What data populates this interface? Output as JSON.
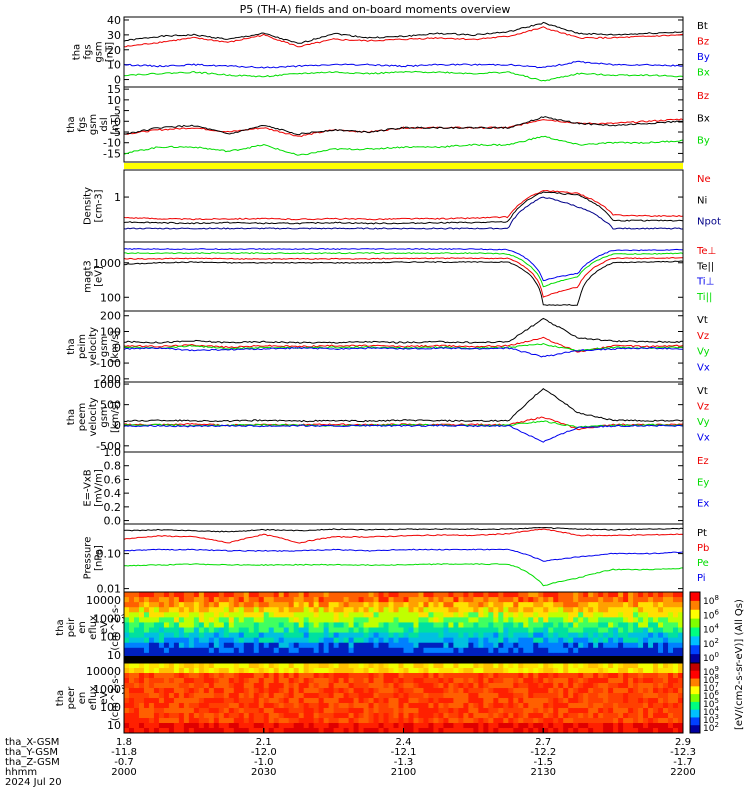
{
  "title": "P5 (TH-A) fields and on-board moments overview",
  "footer_date": "2024 Jul 20",
  "colorbar_label": "[eV/(cm2-s-sr-eV)] (All Qs)",
  "chart_data": [
    {
      "type": "line",
      "panel": "fgs_gsm",
      "ylabel": [
        "tha",
        "fgs",
        "gsm",
        "[nT]"
      ],
      "yticks": [
        "40",
        "30",
        "20",
        "10",
        "0"
      ],
      "ylim": [
        -5,
        42
      ],
      "series": [
        {
          "name": "Bt",
          "color": "#000000",
          "values": [
            26,
            29,
            30,
            27,
            31,
            24,
            31,
            28,
            29,
            31,
            30,
            32,
            38,
            31,
            30,
            31,
            32
          ]
        },
        {
          "name": "Bz",
          "color": "#ee0000",
          "values": [
            22,
            25,
            28,
            25,
            30,
            22,
            27,
            26,
            27,
            28,
            27,
            29,
            35,
            28,
            28,
            29,
            30
          ]
        },
        {
          "name": "By",
          "color": "#0000ee",
          "values": [
            10,
            9,
            10,
            9,
            8,
            9,
            10,
            10,
            9,
            10,
            10,
            10,
            8,
            12,
            10,
            10,
            9
          ]
        },
        {
          "name": "Bx",
          "color": "#00dd00",
          "values": [
            3,
            4,
            5,
            3,
            2,
            4,
            5,
            4,
            5,
            5,
            4,
            5,
            -1,
            4,
            3,
            3,
            2
          ]
        }
      ]
    },
    {
      "type": "line",
      "panel": "fgs_dsl",
      "ylabel": [
        "tha",
        "fgs",
        "gsm",
        "dsl",
        "[nT]"
      ],
      "yticks": [
        "15",
        "10",
        "5",
        "0",
        "-5",
        "-10",
        "-15"
      ],
      "ylim": [
        -19,
        16
      ],
      "series": [
        {
          "name": "Bz",
          "color": "#ee0000",
          "values": [
            -6,
            -4,
            -3,
            -5,
            -3,
            -7,
            -4,
            -5,
            -3,
            -3,
            -3,
            -3,
            1,
            -1,
            -1,
            0,
            1
          ]
        },
        {
          "name": "Bx",
          "color": "#000000",
          "values": [
            -6,
            -3,
            -2,
            -6,
            -2,
            -6,
            -4,
            -5,
            -3,
            -3,
            -3,
            -3,
            2,
            -1,
            -2,
            -1,
            0
          ]
        },
        {
          "name": "By",
          "color": "#00dd00",
          "values": [
            -15,
            -12,
            -12,
            -14,
            -11,
            -16,
            -13,
            -13,
            -12,
            -12,
            -11,
            -11,
            -7,
            -11,
            -10,
            -10,
            -9
          ]
        }
      ]
    },
    {
      "type": "line",
      "panel": "density",
      "ylabel": [
        "Density",
        "[cm-3]"
      ],
      "yticks": [
        "1"
      ],
      "scale": "log",
      "ylim": [
        0.1,
        4
      ],
      "series": [
        {
          "name": "Ne",
          "color": "#ee0000",
          "values": [
            0.35,
            0.33,
            0.32,
            0.33,
            0.33,
            0.32,
            0.33,
            0.32,
            0.33,
            0.33,
            0.34,
            0.36,
            1.4,
            1.2,
            0.4,
            0.38,
            0.38
          ]
        },
        {
          "name": "Ni",
          "color": "#000000",
          "values": [
            0.28,
            0.27,
            0.26,
            0.27,
            0.26,
            0.26,
            0.27,
            0.26,
            0.26,
            0.27,
            0.27,
            0.28,
            1.3,
            1.1,
            0.3,
            0.3,
            0.3
          ]
        },
        {
          "name": "Npot",
          "color": "#000088",
          "values": [
            0.2,
            0.2,
            0.2,
            0.2,
            0.2,
            0.2,
            0.2,
            0.2,
            0.2,
            0.2,
            0.2,
            0.2,
            1.0,
            0.6,
            0.2,
            0.2,
            0.2
          ]
        }
      ]
    },
    {
      "type": "line",
      "panel": "temperature",
      "ylabel": [
        "magt3",
        "[eV]"
      ],
      "yticks": [
        "1000",
        "100"
      ],
      "scale": "log",
      "ylim": [
        40,
        4000
      ],
      "series": [
        {
          "name": "Te⊥",
          "color": "#ee0000",
          "values": [
            1300,
            1300,
            1350,
            1300,
            1300,
            1300,
            1300,
            1300,
            1350,
            1350,
            1350,
            1350,
            100,
            200,
            1350,
            1350,
            1400
          ]
        },
        {
          "name": "Te||",
          "color": "#000000",
          "values": [
            900,
            1000,
            1050,
            1000,
            1000,
            1000,
            1000,
            1000,
            1050,
            1050,
            1050,
            1050,
            60,
            60,
            1000,
            1050,
            1100
          ]
        },
        {
          "name": "Ti⊥",
          "color": "#0000ee",
          "values": [
            2500,
            2500,
            2500,
            2500,
            2500,
            2500,
            2500,
            2500,
            2500,
            2500,
            2500,
            2400,
            300,
            500,
            2300,
            2300,
            2400
          ]
        },
        {
          "name": "Ti||",
          "color": "#00dd00",
          "values": [
            1900,
            1900,
            1900,
            1900,
            1900,
            1900,
            1900,
            1900,
            1900,
            1900,
            1900,
            1800,
            200,
            400,
            1800,
            1800,
            1900
          ]
        }
      ]
    },
    {
      "type": "line",
      "panel": "peim_velocity",
      "ylabel": [
        "tha",
        "peim",
        "velocity",
        "gsm",
        "[km/s]"
      ],
      "yticks": [
        "200",
        "100",
        "0",
        "-100",
        "-200"
      ],
      "ylim": [
        -220,
        230
      ],
      "series": [
        {
          "name": "Vt",
          "color": "#000000",
          "values": [
            35,
            30,
            40,
            30,
            35,
            30,
            30,
            35,
            30,
            35,
            30,
            35,
            180,
            60,
            40,
            35,
            35
          ]
        },
        {
          "name": "Vz",
          "color": "#ee0000",
          "values": [
            10,
            5,
            15,
            0,
            10,
            5,
            10,
            10,
            5,
            10,
            5,
            10,
            60,
            -30,
            10,
            5,
            10
          ]
        },
        {
          "name": "Vy",
          "color": "#00dd00",
          "values": [
            0,
            -5,
            10,
            -10,
            0,
            -5,
            0,
            0,
            -5,
            0,
            -5,
            0,
            20,
            -20,
            0,
            -5,
            0
          ]
        },
        {
          "name": "Vx",
          "color": "#0000ee",
          "values": [
            -10,
            -5,
            -20,
            -15,
            -10,
            -5,
            -10,
            -5,
            -10,
            -5,
            -10,
            -5,
            -60,
            -20,
            -10,
            -5,
            -10
          ]
        }
      ]
    },
    {
      "type": "line",
      "panel": "peem_velocity",
      "ylabel": [
        "tha",
        "peem",
        "velocity",
        "gsm",
        "[km/s]"
      ],
      "yticks": [
        "1000",
        "500",
        "0",
        "-500"
      ],
      "ylim": [
        -650,
        1050
      ],
      "series": [
        {
          "name": "Vt",
          "color": "#000000",
          "values": [
            100,
            120,
            110,
            100,
            120,
            100,
            110,
            100,
            120,
            110,
            100,
            110,
            900,
            300,
            120,
            110,
            110
          ]
        },
        {
          "name": "Vz",
          "color": "#ee0000",
          "values": [
            20,
            10,
            30,
            0,
            20,
            10,
            20,
            10,
            20,
            10,
            20,
            10,
            200,
            -100,
            20,
            10,
            20
          ]
        },
        {
          "name": "Vy",
          "color": "#00dd00",
          "values": [
            0,
            10,
            -10,
            0,
            10,
            0,
            -10,
            0,
            10,
            0,
            -10,
            0,
            100,
            -50,
            0,
            10,
            0
          ]
        },
        {
          "name": "Vx",
          "color": "#0000ee",
          "values": [
            -20,
            -10,
            -30,
            -10,
            -20,
            -10,
            -20,
            -10,
            -20,
            -10,
            -20,
            -10,
            -400,
            -50,
            -20,
            -10,
            -20
          ]
        }
      ]
    },
    {
      "type": "line",
      "panel": "efield",
      "ylabel": [
        "E=-VxB",
        "[mV/m]"
      ],
      "yticks": [
        "1.0",
        "0.8",
        "0.6",
        "0.4",
        "0.2",
        "0.0"
      ],
      "ylim": [
        -0.05,
        1.0
      ],
      "series": [
        {
          "name": "Ez",
          "color": "#ee0000",
          "values": []
        },
        {
          "name": "Ey",
          "color": "#00dd00",
          "values": []
        },
        {
          "name": "Ex",
          "color": "#0000ee",
          "values": []
        }
      ]
    },
    {
      "type": "line",
      "panel": "pressure",
      "ylabel": [
        "Pressure",
        "[nPa]"
      ],
      "yticks": [
        "0.10",
        "0.01"
      ],
      "scale": "log",
      "ylim": [
        0.008,
        0.7
      ],
      "series": [
        {
          "name": "Pt",
          "color": "#000000",
          "values": [
            0.45,
            0.48,
            0.45,
            0.42,
            0.48,
            0.45,
            0.5,
            0.48,
            0.5,
            0.5,
            0.5,
            0.5,
            0.55,
            0.5,
            0.48,
            0.5,
            0.52
          ]
        },
        {
          "name": "Pb",
          "color": "#ee0000",
          "values": [
            0.26,
            0.32,
            0.3,
            0.2,
            0.35,
            0.2,
            0.3,
            0.3,
            0.32,
            0.34,
            0.33,
            0.37,
            0.5,
            0.33,
            0.33,
            0.34,
            0.36
          ]
        },
        {
          "name": "Pe",
          "color": "#00dd00",
          "values": [
            0.045,
            0.047,
            0.05,
            0.048,
            0.047,
            0.048,
            0.048,
            0.047,
            0.048,
            0.05,
            0.05,
            0.05,
            0.012,
            0.02,
            0.035,
            0.035,
            0.038
          ]
        },
        {
          "name": "Pi",
          "color": "#0000ee",
          "values": [
            0.12,
            0.13,
            0.13,
            0.12,
            0.12,
            0.12,
            0.13,
            0.12,
            0.13,
            0.13,
            0.13,
            0.13,
            0.06,
            0.08,
            0.1,
            0.1,
            0.11
          ]
        }
      ]
    },
    {
      "type": "heatmap",
      "panel": "peir_spectrogram",
      "ylabel": [
        "tha",
        "peir",
        "en",
        "eflux",
        "eV",
        "(cm^2-s-",
        "sr-eV)"
      ],
      "yticks": [
        "10000",
        "1000",
        "100",
        "10"
      ],
      "colorbar_ticks": [
        "10^8",
        "10^6",
        "10^4",
        "10^2",
        "10^0"
      ]
    },
    {
      "type": "heatmap",
      "panel": "peer_spectrogram",
      "ylabel": [
        "tha",
        "peer",
        "en",
        "eflux",
        "eV",
        "(cm^2-s-",
        "sr-eV)"
      ],
      "yticks": [
        "10000",
        "1000",
        "100",
        "10"
      ],
      "colorbar_ticks": [
        "10^9",
        "10^8",
        "10^7",
        "10^6",
        "10^5",
        "10^4",
        "10^3",
        "10^2"
      ]
    }
  ],
  "xaxis": {
    "row_labels": [
      "tha_X-GSM",
      "tha_Y-GSM",
      "tha_Z-GSM",
      "hhmm"
    ],
    "columns": [
      {
        "vals": [
          "1.8",
          "-11.8",
          "-0.7",
          "2000"
        ]
      },
      {
        "vals": [
          "2.1",
          "-12.0",
          "-1.0",
          "2030"
        ]
      },
      {
        "vals": [
          "2.4",
          "-12.1",
          "-1.3",
          "2100"
        ]
      },
      {
        "vals": [
          "2.7",
          "-12.2",
          "-1.5",
          "2130"
        ]
      },
      {
        "vals": [
          "2.9",
          "-12.3",
          "-1.7",
          "2200"
        ]
      }
    ]
  }
}
